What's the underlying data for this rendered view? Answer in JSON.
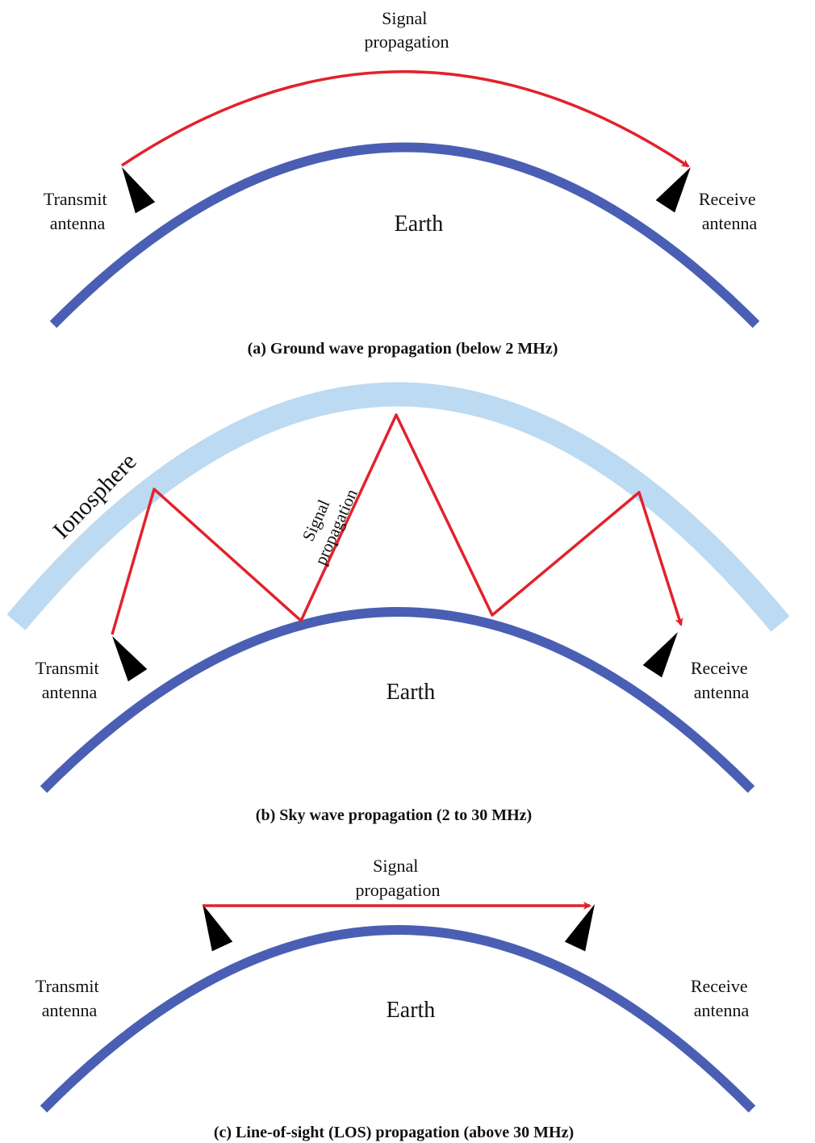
{
  "colors": {
    "earth": "#4a5fb4",
    "ionosphere": "#bcdaf1",
    "signal": "#e2222c",
    "antenna": "#111111"
  },
  "panels": [
    {
      "caption": "(a) Ground wave propagation (below 2 MHz)",
      "earth_label": "Earth",
      "signal_label": [
        "Signal",
        "propagation"
      ],
      "transmit_label": [
        "Transmit",
        "antenna"
      ],
      "receive_label": [
        "Receive",
        "antenna"
      ]
    },
    {
      "caption": "(b) Sky wave propagation (2 to 30 MHz)",
      "earth_label": "Earth",
      "ionosphere_label": "Ionosphere",
      "signal_label": [
        "Signal",
        "propagation"
      ],
      "transmit_label": [
        "Transmit",
        "antenna"
      ],
      "receive_label": [
        "Receive",
        "antenna"
      ]
    },
    {
      "caption": "(c) Line-of-sight (LOS) propagation (above 30 MHz)",
      "earth_label": "Earth",
      "signal_label": [
        "Signal",
        "propagation"
      ],
      "transmit_label": [
        "Transmit",
        "antenna"
      ],
      "receive_label": [
        "Receive",
        "antenna"
      ]
    }
  ],
  "icons": {
    "antenna": "lattice-tower-icon",
    "arrowhead": "arrowhead-icon"
  }
}
